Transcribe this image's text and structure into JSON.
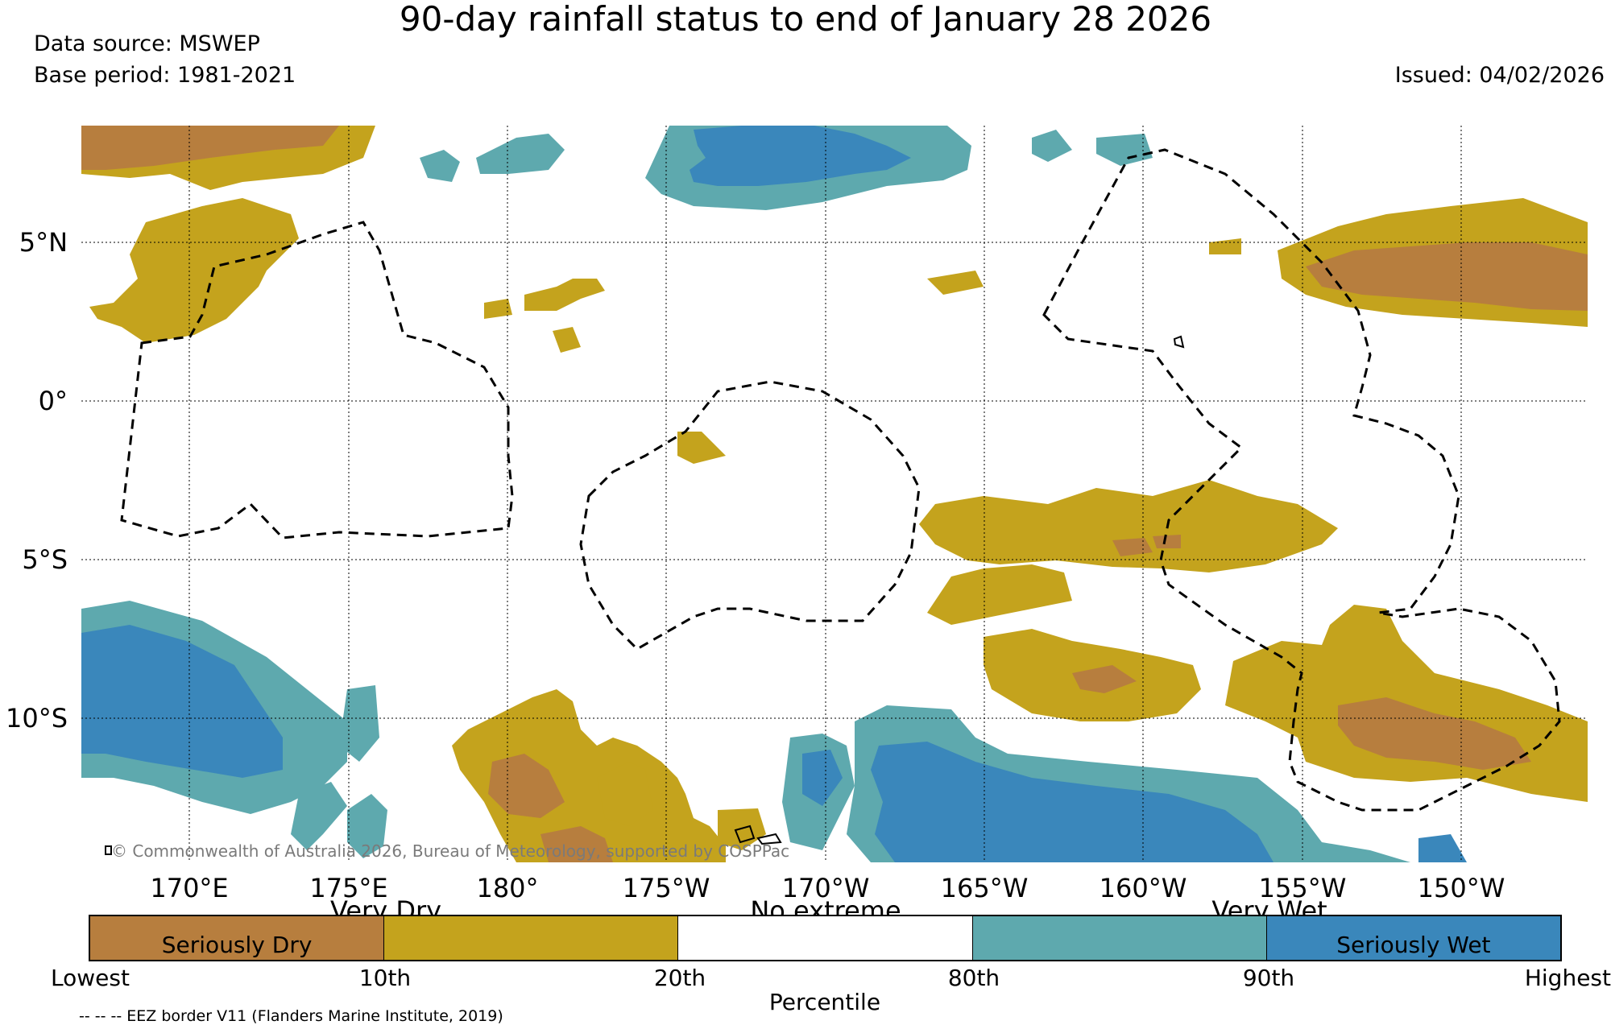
{
  "header": {
    "title": "90-day rainfall status to end of January 28 2026",
    "data_source": "Data source: MSWEP",
    "base_period": "Base period: 1981-2021",
    "issued": "Issued: 04/02/2026"
  },
  "map": {
    "lat_labels": [
      "5°N",
      "0°",
      "5°S",
      "10°S"
    ],
    "lon_labels": [
      "170°E",
      "175°E",
      "180°",
      "175°W",
      "170°W",
      "165°W",
      "160°W",
      "155°W",
      "150°W"
    ],
    "copyright": "© Commonwealth of Australia 2026, Bureau of Meteorology, supported by COSPPac",
    "colors": {
      "seriously_dry": "#b77e3e",
      "very_dry": "#c4a31d",
      "no_extreme": "#ffffff",
      "very_wet": "#5ea9ae",
      "seriously_wet": "#3a87bb"
    }
  },
  "legend": {
    "segments": [
      {
        "label": "Seriously Dry",
        "color": "#b77e3e"
      },
      {
        "label": "",
        "color": "#c4a31d"
      },
      {
        "label": "",
        "color": "#ffffff"
      },
      {
        "label": "",
        "color": "#5ea9ae"
      },
      {
        "label": "Seriously Wet",
        "color": "#3a87bb"
      }
    ],
    "headings": [
      "Very Dry",
      "No extreme",
      "Very Wet"
    ],
    "ticks": [
      "Lowest",
      "10th",
      "20th",
      "80th",
      "90th",
      "Highest"
    ],
    "xlabel": "Percentile",
    "eez_note": "-- -- -- EEZ border V11 (Flanders Marine Institute, 2019)"
  }
}
